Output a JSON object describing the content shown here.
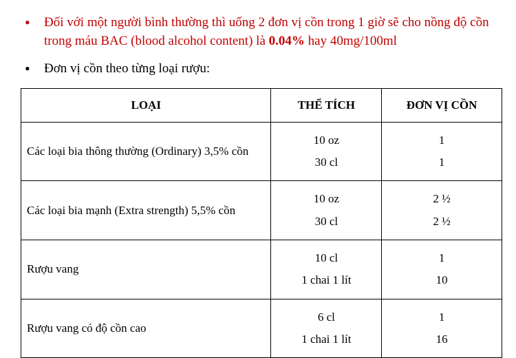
{
  "bullets": {
    "red_prefix": "Đối với một người bình thường thì uống 2 đơn vị cồn trong 1 giờ sẽ cho nồng độ cồn trong máu BAC (blood alcohol content) là ",
    "red_bold": "0.04%",
    "red_suffix": " hay 40mg/100ml",
    "black": "Đơn vị cồn theo từng loại rượu:"
  },
  "table": {
    "headers": {
      "type": "LOẠI",
      "volume": "THỂ TÍCH",
      "units": "ĐƠN VỊ CỒN"
    },
    "rows": [
      {
        "type": "Các loại bia thông thường (Ordinary) 3,5% cồn",
        "vol1": "10 oz",
        "vol2": "30 cl",
        "units1": "1",
        "units2": "1"
      },
      {
        "type": "Các loại bia mạnh (Extra strength) 5,5% cồn",
        "vol1": "10 oz",
        "vol2": "30 cl",
        "units1": "2 ½",
        "units2": "2 ½"
      },
      {
        "type": "Rượu vang",
        "vol1": "10 cl",
        "vol2": "1 chai 1 lít",
        "units1": "1",
        "units2": "10"
      },
      {
        "type": "Rượu vang có độ cồn cao",
        "vol1": "6 cl",
        "vol2": "1 chai 1 lít",
        "units1": "1",
        "units2": "16"
      }
    ]
  },
  "style": {
    "accent_color": "#c00000",
    "text_color": "#000000",
    "border_color": "#000000",
    "background_color": "#ffffff",
    "font_family": "Times New Roman",
    "body_fontsize_pt": 14,
    "col_widths_pct": [
      52,
      23,
      25
    ]
  }
}
